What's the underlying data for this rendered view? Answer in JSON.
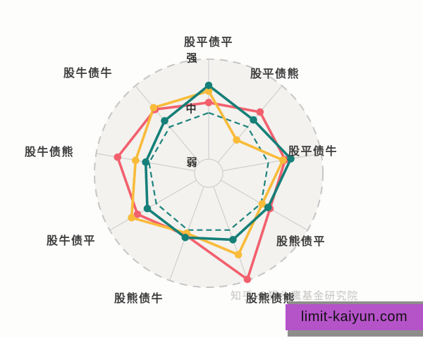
{
  "page": {
    "watermark": "知乎 @猫头鹰基金研究院",
    "overlay": {
      "text": "limit-kaiyun.com",
      "bg_color": "#b553c9",
      "shadow_color": "#8e8d8b"
    }
  },
  "chart_data": {
    "type": "radar",
    "title": "",
    "axes": [
      "股平债平",
      "股平债熊",
      "股平债牛",
      "股熊债平",
      "股熊债熊",
      "股熊债牛",
      "股牛债平",
      "股牛债熊",
      "股牛债牛"
    ],
    "levels": [
      {
        "label": "弱",
        "r": 0.0
      },
      {
        "label": "中",
        "r": 0.53
      },
      {
        "label": "强",
        "r": 1.0
      }
    ],
    "axis_range": [
      0,
      1
    ],
    "grid": "9 spokes, outer dashed circle, small inner hub circle",
    "legend_position": "none",
    "center": [
      296,
      246
    ],
    "outer_radius": 162,
    "hub_radius": 20,
    "colors": {
      "teal": "#157f78",
      "yellow": "#f9bb3a",
      "pink": "#f2606d",
      "grid": "#cfcfcf",
      "grid_dashed": "#c6c6c6",
      "plot_fill": "#f3f2ef"
    },
    "series": [
      {
        "name": "teal-dashed-reference",
        "color": "#1d837c",
        "dashed": true,
        "width": 2.2,
        "dots": false,
        "values": [
          0.53,
          0.53,
          0.53,
          0.53,
          0.53,
          0.53,
          0.53,
          0.53,
          0.53
        ]
      },
      {
        "name": "pink",
        "color": "#f2606d",
        "dashed": false,
        "width": 3.6,
        "dots": true,
        "values": [
          0.62,
          0.7,
          0.68,
          0.62,
          0.99,
          0.58,
          0.72,
          0.81,
          0.73
        ]
      },
      {
        "name": "yellow",
        "color": "#f9bb3a",
        "dashed": false,
        "width": 3.6,
        "dots": true,
        "values": [
          0.72,
          0.38,
          0.66,
          0.54,
          0.76,
          0.56,
          0.78,
          0.65,
          0.75
        ]
      },
      {
        "name": "teal",
        "color": "#157f78",
        "dashed": false,
        "width": 3.6,
        "dots": true,
        "values": [
          0.77,
          0.61,
          0.73,
          0.6,
          0.62,
          0.6,
          0.62,
          0.56,
          0.6
        ]
      }
    ]
  }
}
